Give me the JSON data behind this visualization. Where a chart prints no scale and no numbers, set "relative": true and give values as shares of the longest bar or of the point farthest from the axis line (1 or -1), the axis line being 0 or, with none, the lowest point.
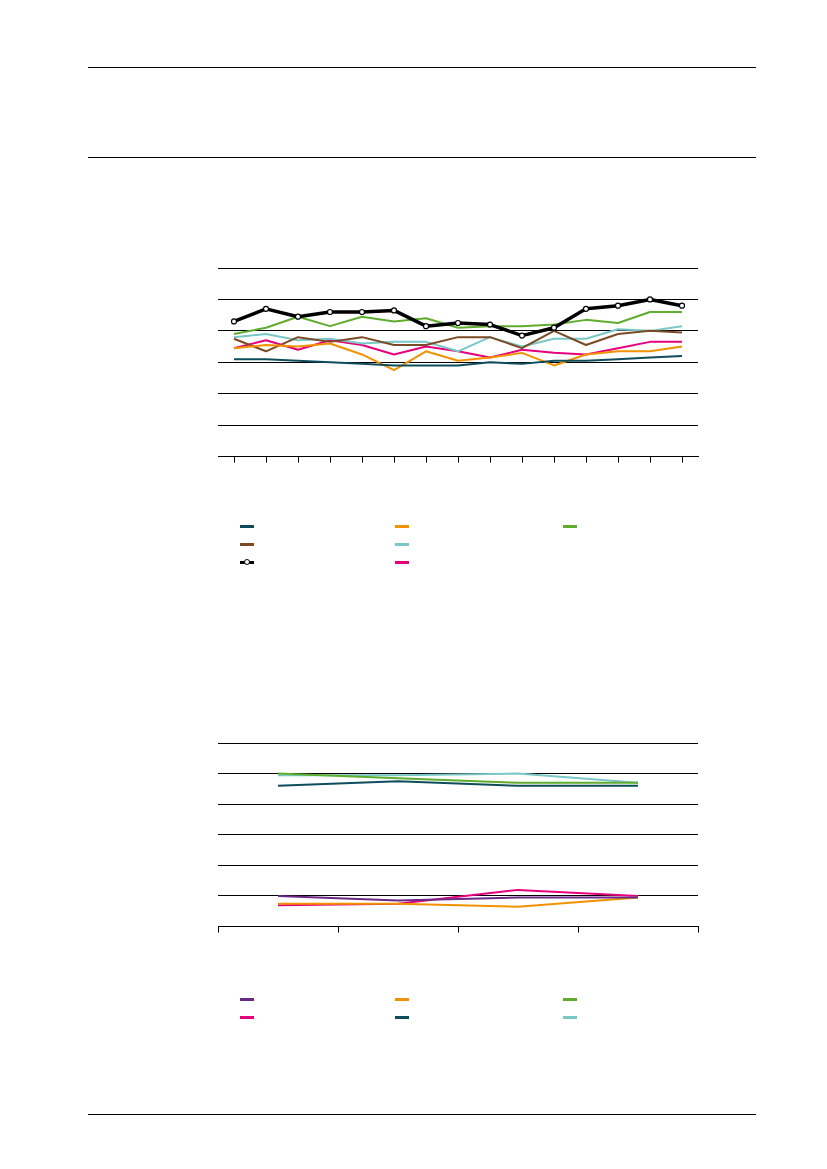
{
  "chart_data": [
    {
      "type": "line",
      "relative": true,
      "grid": "y",
      "marker": "none",
      "categories": [
        null,
        null,
        null,
        null,
        null,
        null,
        null,
        null,
        null,
        null,
        null,
        null,
        null,
        null,
        null
      ],
      "series": [
        {
          "color": "#0d4d5c",
          "values": [
            0.62,
            0.62,
            0.61,
            0.6,
            0.59,
            0.58,
            0.58,
            0.58,
            0.6,
            0.59,
            0.61,
            0.61,
            0.62,
            0.63,
            0.64
          ]
        },
        {
          "color": "#f39200",
          "values": [
            0.69,
            0.71,
            0.7,
            0.72,
            0.65,
            0.55,
            0.67,
            0.61,
            0.63,
            0.66,
            0.58,
            0.65,
            0.67,
            0.67,
            0.7
          ]
        },
        {
          "color": "#5fac2e",
          "values": [
            0.78,
            0.82,
            0.89,
            0.83,
            0.89,
            0.86,
            0.88,
            0.82,
            0.83,
            0.83,
            0.84,
            0.87,
            0.85,
            0.92,
            0.92
          ]
        },
        {
          "color": "#7b4a24",
          "values": [
            0.75,
            0.67,
            0.76,
            0.73,
            0.76,
            0.71,
            0.71,
            0.76,
            0.76,
            0.69,
            0.8,
            0.71,
            0.78,
            0.8,
            0.79
          ]
        },
        {
          "color": "#79c7c7",
          "values": [
            0.76,
            0.78,
            0.74,
            0.75,
            0.72,
            0.73,
            0.73,
            0.67,
            0.76,
            0.7,
            0.75,
            0.75,
            0.81,
            0.8,
            0.83
          ]
        },
        {
          "color": "#000000",
          "marker": "circle",
          "values": [
            0.86,
            0.94,
            0.89,
            0.92,
            0.92,
            0.93,
            0.83,
            0.85,
            0.84,
            0.77,
            0.82,
            0.94,
            0.96,
            1,
            0.96
          ]
        },
        {
          "color": "#e6007e",
          "values": [
            0.69,
            0.74,
            0.68,
            0.74,
            0.71,
            0.65,
            0.7,
            0.67,
            0.63,
            0.68,
            0.66,
            0.65,
            0.69,
            0.73,
            0.73
          ]
        }
      ]
    },
    {
      "type": "line",
      "relative": true,
      "grid": "y",
      "marker": "none",
      "categories": [
        null,
        null,
        null,
        null
      ],
      "series": [
        {
          "color": "#6a2a84",
          "values": [
            0.2,
            0.17,
            0.19,
            0.19
          ]
        },
        {
          "color": "#f39200",
          "values": [
            0.15,
            0.15,
            0.13,
            0.19
          ]
        },
        {
          "color": "#5fac2e",
          "values": [
            1,
            0.97,
            0.94,
            0.94
          ]
        },
        {
          "color": "#e6007e",
          "values": [
            0.14,
            0.15,
            0.24,
            0.2
          ]
        },
        {
          "color": "#0d4d5c",
          "values": [
            0.92,
            0.95,
            0.92,
            0.92
          ]
        },
        {
          "color": "#79c7c7",
          "values": [
            0.99,
            0.99,
            1,
            0.94
          ]
        }
      ]
    }
  ]
}
